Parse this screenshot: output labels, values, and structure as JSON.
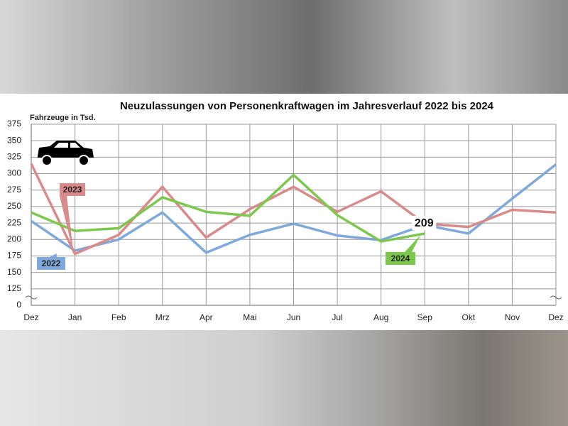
{
  "chart_data": {
    "type": "line",
    "title": "Neuzulassungen von Personenkraftwagen im Jahresverlauf 2022 bis 2024",
    "y_label": "Fahrzeuge in Tsd.",
    "categories": [
      "Dez",
      "Jan",
      "Feb",
      "Mrz",
      "Apr",
      "Mai",
      "Jun",
      "Jul",
      "Aug",
      "Sep",
      "Okt",
      "Nov",
      "Dez"
    ],
    "series": [
      {
        "name": "2022",
        "color": "#7fa8dc",
        "values": [
          228,
          183,
          200,
          241,
          180,
          207,
          224,
          206,
          199,
          222,
          209,
          262,
          314
        ]
      },
      {
        "name": "2023",
        "color": "#d98a8a",
        "values": [
          315,
          178,
          207,
          280,
          203,
          246,
          280,
          242,
          273,
          224,
          219,
          245,
          241
        ]
      },
      {
        "name": "2024",
        "color": "#7cc84c",
        "values": [
          241,
          213,
          217,
          264,
          242,
          236,
          298,
          237,
          197,
          209,
          null,
          null,
          null
        ]
      }
    ],
    "annotation": "209",
    "ylim": [
      0,
      375
    ],
    "axis_break": [
      0,
      100
    ],
    "yticks": [
      0,
      125,
      150,
      175,
      200,
      225,
      250,
      275,
      300,
      325,
      350,
      375
    ],
    "grid": true
  }
}
